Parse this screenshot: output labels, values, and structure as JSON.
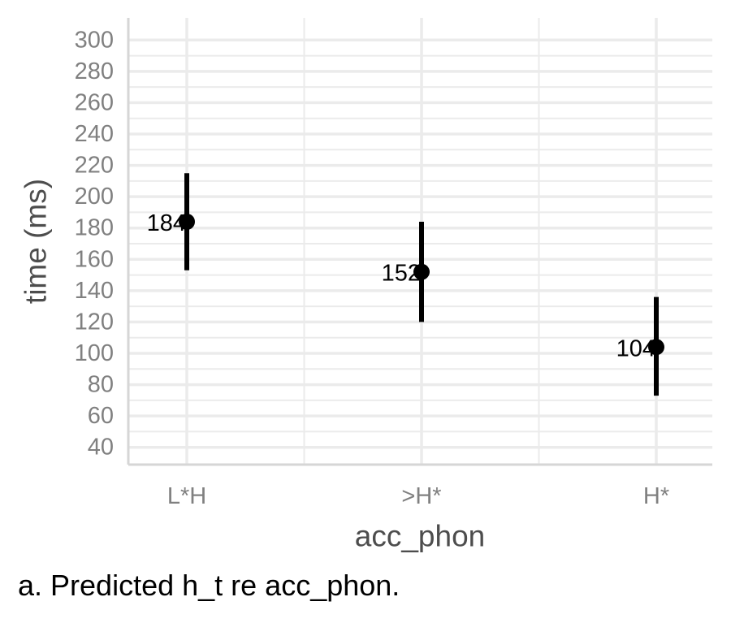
{
  "chart_data": {
    "type": "scatter",
    "xlabel": "acc_phon",
    "ylabel": "time (ms)",
    "ylim": [
      30,
      310
    ],
    "yticks": [
      40,
      60,
      80,
      100,
      120,
      140,
      160,
      180,
      200,
      220,
      240,
      260,
      280,
      300
    ],
    "categories": [
      "L*H",
      ">H*",
      "H*"
    ],
    "values": [
      184,
      152,
      104
    ],
    "error_low": [
      153,
      120,
      73
    ],
    "error_high": [
      215,
      184,
      136
    ],
    "point_labels": [
      "184",
      "152",
      "104"
    ],
    "grid": true,
    "colors": {
      "point": "#000000",
      "grid": "#ebebeb",
      "tick": "#808080",
      "axis_title": "#4d4d4d"
    }
  },
  "caption": "a. Predicted h_t re acc_phon."
}
